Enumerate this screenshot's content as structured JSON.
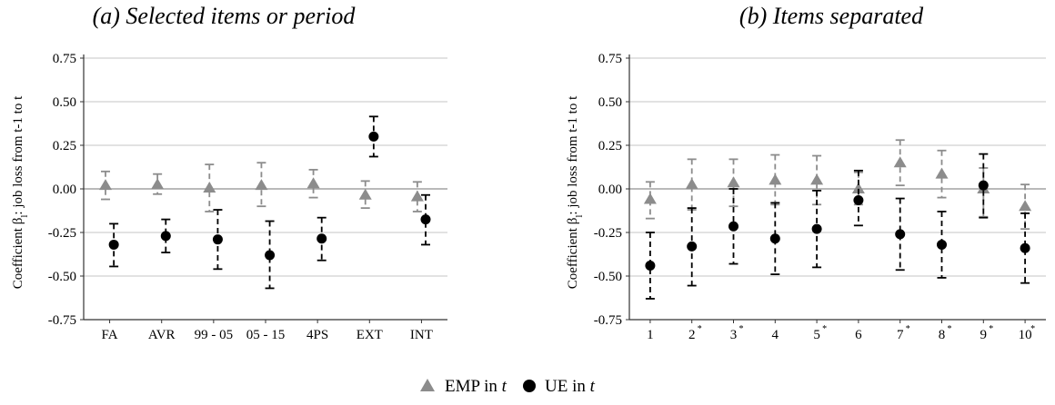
{
  "chart_data": [
    {
      "type": "scatter",
      "title": "(a) Selected items or period",
      "ylabel": "Coefficient β",
      "ylabel_sub": "l",
      "ylabel_rest": ": job loss from t-1 to t",
      "ylim": [
        -0.75,
        0.75
      ],
      "yticks": [
        "-0.75",
        "-0.50",
        "-0.25",
        "0.00",
        "0.25",
        "0.50",
        "0.75"
      ],
      "categories": [
        "FA",
        "AVR",
        "99 - 05",
        "05 - 15",
        "4PS",
        "EXT",
        "INT"
      ],
      "starred": [
        false,
        false,
        false,
        false,
        false,
        false,
        false
      ],
      "series": [
        {
          "name": "EMP",
          "marker": "triangle",
          "color": "#8c8c8c",
          "values": [
            0.02,
            0.025,
            0.005,
            0.02,
            0.03,
            -0.035,
            -0.045
          ],
          "lower": [
            -0.06,
            -0.03,
            -0.13,
            -0.1,
            -0.05,
            -0.11,
            -0.13
          ],
          "upper": [
            0.1,
            0.085,
            0.14,
            0.15,
            0.11,
            0.045,
            0.04
          ]
        },
        {
          "name": "UE",
          "marker": "circle",
          "color": "#000000",
          "values": [
            -0.32,
            -0.27,
            -0.29,
            -0.38,
            -0.285,
            0.3,
            -0.175
          ],
          "lower": [
            -0.445,
            -0.365,
            -0.46,
            -0.57,
            -0.41,
            0.185,
            -0.32
          ],
          "upper": [
            -0.2,
            -0.175,
            -0.12,
            -0.185,
            -0.165,
            0.415,
            -0.035
          ]
        }
      ]
    },
    {
      "type": "scatter",
      "title": "(b) Items separated",
      "ylabel": "Coefficient β",
      "ylabel_sub": "l",
      "ylabel_rest": ": job loss from t-1 to t",
      "ylim": [
        -0.75,
        0.75
      ],
      "yticks": [
        "-0.75",
        "-0.50",
        "-0.25",
        "0.00",
        "0.25",
        "0.50",
        "0.75"
      ],
      "categories": [
        "1",
        "2",
        "3",
        "4",
        "5",
        "6",
        "7",
        "8",
        "9",
        "10"
      ],
      "starred": [
        false,
        true,
        true,
        false,
        true,
        false,
        true,
        true,
        true,
        true
      ],
      "series": [
        {
          "name": "EMP",
          "marker": "triangle",
          "color": "#8c8c8c",
          "values": [
            -0.06,
            0.025,
            0.035,
            0.05,
            0.05,
            0.0,
            0.15,
            0.085,
            0.0,
            -0.1
          ],
          "lower": [
            -0.17,
            -0.12,
            -0.1,
            -0.09,
            -0.09,
            -0.09,
            0.02,
            -0.05,
            -0.16,
            -0.23
          ],
          "upper": [
            0.04,
            0.17,
            0.17,
            0.195,
            0.19,
            0.095,
            0.28,
            0.22,
            0.12,
            0.025
          ]
        },
        {
          "name": "UE",
          "marker": "circle",
          "color": "#000000",
          "values": [
            -0.44,
            -0.33,
            -0.215,
            -0.285,
            -0.23,
            -0.065,
            -0.26,
            -0.32,
            0.02,
            -0.34
          ],
          "lower": [
            -0.63,
            -0.555,
            -0.43,
            -0.49,
            -0.45,
            -0.21,
            -0.465,
            -0.51,
            -0.165,
            -0.54
          ],
          "upper": [
            -0.25,
            -0.11,
            0.0,
            -0.08,
            -0.01,
            0.105,
            -0.055,
            -0.13,
            0.2,
            -0.14
          ]
        }
      ]
    }
  ],
  "legend": {
    "placement": "bottom-center",
    "items": [
      {
        "prefix": "EMP in ",
        "var": "t",
        "marker": "triangle",
        "color": "#8c8c8c"
      },
      {
        "prefix": "UE in ",
        "var": "t",
        "marker": "circle",
        "color": "#000000"
      }
    ]
  }
}
